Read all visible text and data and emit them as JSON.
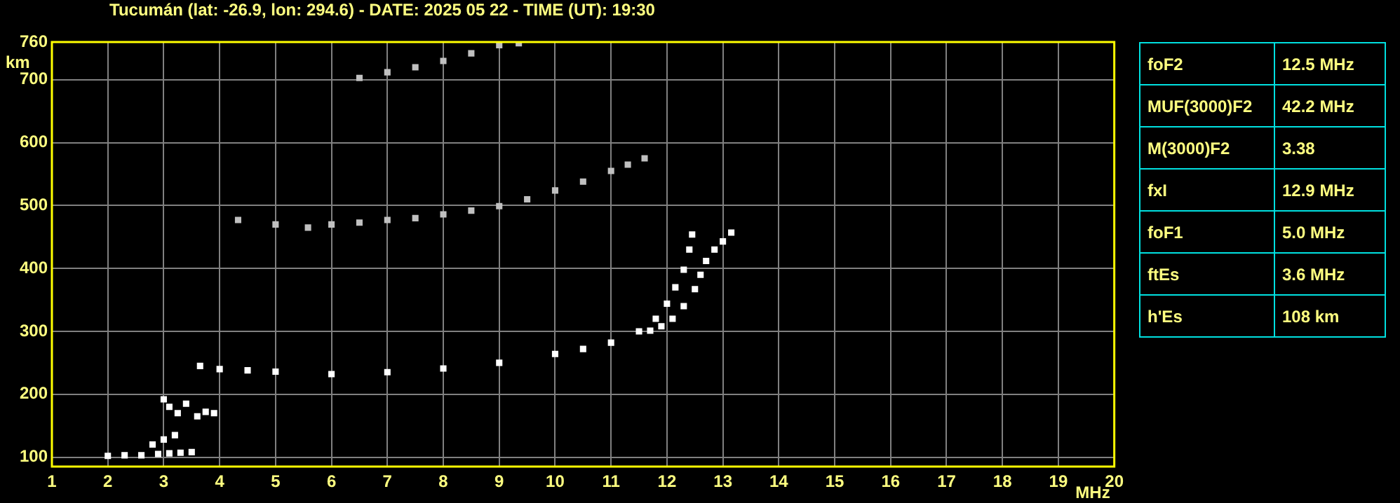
{
  "chart_data": {
    "type": "scatter",
    "title": "Tucumán (lat: -26.9, lon: 294.6) - DATE: 2025 05 22 - TIME (UT): 19:30",
    "xlabel": "MHz",
    "ylabel": "km",
    "xlim": [
      1,
      20
    ],
    "xticks": [
      1,
      2,
      3,
      4,
      5,
      6,
      7,
      8,
      9,
      10,
      11,
      12,
      13,
      14,
      15,
      16,
      17,
      18,
      19,
      20
    ],
    "ylim": [
      85,
      760
    ],
    "yticks": [
      100,
      200,
      300,
      400,
      500,
      600,
      700,
      760
    ],
    "grid": true,
    "marker": "square",
    "series": [
      {
        "color": "#ffffff",
        "x": [
          3.65,
          4,
          4.5,
          5,
          6,
          7,
          8,
          9,
          10,
          10.5,
          11,
          11.5,
          11.8,
          12,
          12.15,
          12.3,
          12.4,
          12.45
        ],
        "values": [
          245,
          240,
          238,
          236,
          232,
          235,
          241,
          250,
          264,
          272,
          282,
          300,
          320,
          344,
          370,
          398,
          430,
          454
        ]
      },
      {
        "color": "#ffffff",
        "x": [
          11.7,
          11.9,
          12.1,
          12.3,
          12.5,
          12.6,
          12.7,
          12.85,
          13,
          13.15
        ],
        "values": [
          301,
          308,
          320,
          340,
          367,
          390,
          412,
          430,
          443,
          457
        ]
      },
      {
        "color": "#c0c0c0",
        "x": [
          4.33,
          5,
          5.58,
          6,
          6.5,
          7,
          7.5,
          8,
          8.5,
          9,
          9.5,
          10,
          10.5,
          11,
          11.3,
          11.6
        ],
        "values": [
          477,
          470,
          465,
          470,
          473,
          477,
          480,
          486,
          492,
          499,
          510,
          524,
          538,
          555,
          565,
          575
        ]
      },
      {
        "color": "#c0c0c0",
        "x": [
          6.5,
          7,
          7.5,
          8,
          8.5,
          9,
          9.35
        ],
        "values": [
          703,
          712,
          720,
          730,
          742,
          755,
          758
        ]
      },
      {
        "color": "#ffffff",
        "x": [
          2,
          2.3,
          2.6,
          2.9,
          3.1,
          3.3,
          3.5,
          2.8,
          3,
          3.2
        ],
        "values": [
          102,
          103,
          103,
          105,
          106,
          107,
          108,
          120,
          128,
          135
        ]
      },
      {
        "color": "#ffffff",
        "x": [
          3,
          3.1,
          3.25,
          3.4,
          3.6,
          3.75,
          3.9
        ],
        "values": [
          192,
          180,
          170,
          185,
          165,
          172,
          170
        ]
      }
    ],
    "annotations": [
      "foF2",
      "12.5 MHz",
      "MUF(3000)F2",
      "42.2 MHz",
      "M(3000)F2",
      "3.38",
      "fxI",
      "12.9 MHz",
      "foF1",
      "5.0 MHz",
      "ftEs",
      "3.6 MHz",
      "h'Es",
      "108 km"
    ]
  }
}
